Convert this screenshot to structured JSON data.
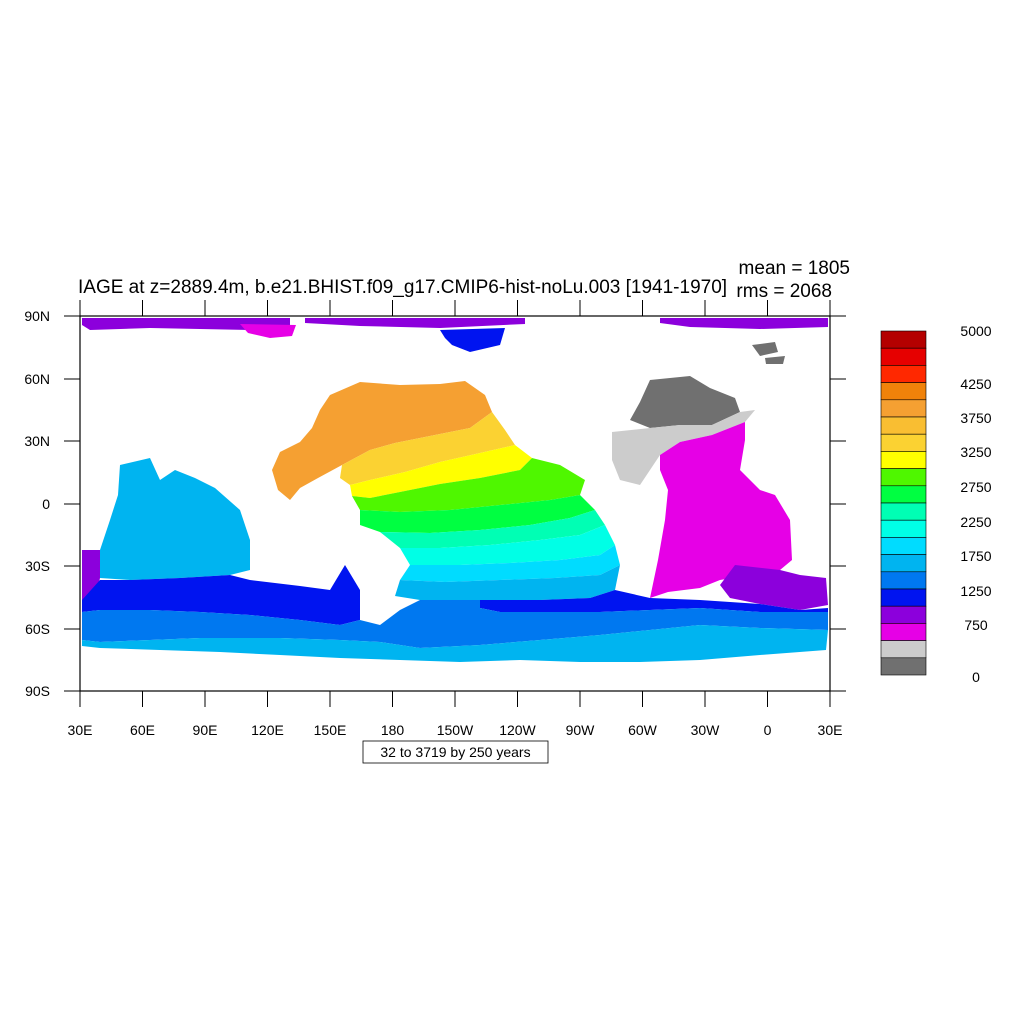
{
  "title": "IAGE at z=2889.4m, b.e21.BHIST.f09_g17.CMIP6-hist-noLu.003 [1941-1970]",
  "stats": {
    "mean": "mean = 1805",
    "rms": "rms = 2068"
  },
  "info_box": "32 to 3719 by 250 years",
  "map": {
    "lat_ticks": [
      "90N",
      "60N",
      "30N",
      "0",
      "30S",
      "60S",
      "90S"
    ],
    "lon_ticks": [
      "30E",
      "60E",
      "90E",
      "120E",
      "150E",
      "180",
      "150W",
      "120W",
      "90W",
      "60W",
      "30W",
      "0",
      "30E"
    ],
    "land_color": "#ffffff"
  },
  "colorbar": {
    "colors": [
      "#b40000",
      "#e60000",
      "#ff2800",
      "#f0820a",
      "#f5a032",
      "#f9be32",
      "#fbd232",
      "#ffff00",
      "#4ff700",
      "#00ff41",
      "#00ffb4",
      "#00ffe6",
      "#00dcff",
      "#00b4f0",
      "#0078f0",
      "#0014f0",
      "#8c00dc",
      "#e600e6",
      "#cccccc",
      "#707070"
    ],
    "labels": [
      "5000",
      "4250",
      "3750",
      "3250",
      "2750",
      "2250",
      "1750",
      "1250",
      "750",
      "0"
    ]
  }
}
